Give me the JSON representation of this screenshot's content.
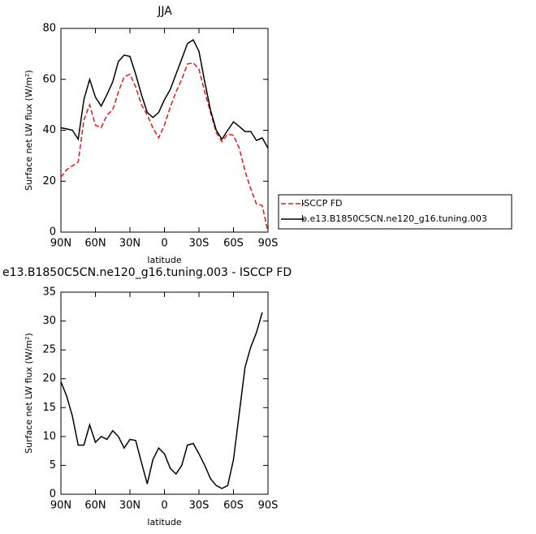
{
  "chart_data": [
    {
      "type": "line",
      "title": "JJA",
      "x_label": "latitude",
      "y_label": "Surface net LW flux (W/m²)",
      "x": [
        90,
        85,
        80,
        75,
        70,
        65,
        60,
        55,
        50,
        45,
        40,
        35,
        30,
        25,
        20,
        15,
        10,
        5,
        0,
        -5,
        -10,
        -15,
        -20,
        -25,
        -30,
        -35,
        -40,
        -45,
        -50,
        -55,
        -60,
        -65,
        -70,
        -75,
        -80,
        -85,
        -90
      ],
      "series": [
        {
          "name": "ISCCP FD",
          "color": "#e0191c",
          "line_style": "dashed",
          "values": [
            21.5,
            24.5,
            26,
            27.5,
            44,
            50,
            42,
            41,
            46,
            48,
            55,
            61,
            62,
            57,
            50,
            46,
            41,
            37,
            42,
            49,
            55,
            60,
            66,
            66.5,
            64,
            55,
            47,
            39,
            35.5,
            38.5,
            38,
            33,
            24,
            17,
            11,
            10.5,
            0
          ]
        },
        {
          "name": "b.e13.B1850C5CN.ne120_g16.tuning.003",
          "color": "#000000",
          "line_style": "solid",
          "values": [
            41,
            40.5,
            40,
            36.5,
            52,
            60,
            53,
            49.5,
            54,
            59,
            67,
            69.5,
            69,
            62,
            54,
            47,
            45,
            47,
            52,
            56,
            62,
            68,
            74,
            75.5,
            71,
            59,
            48,
            40,
            36.5,
            40,
            43.3,
            41.5,
            39.5,
            39.5,
            36,
            37,
            33
          ]
        }
      ],
      "xlim": [
        90,
        -90
      ],
      "xticks": [
        {
          "value": 90,
          "label": "90N"
        },
        {
          "value": 60,
          "label": "60N"
        },
        {
          "value": 30,
          "label": "30N"
        },
        0,
        {
          "value": -30,
          "label": "30S"
        },
        {
          "value": -60,
          "label": "60S"
        },
        {
          "value": -90,
          "label": "90S"
        }
      ],
      "ylim": [
        0,
        80
      ],
      "yticks": [
        0,
        20,
        40,
        60,
        80
      ],
      "legend": "right"
    },
    {
      "type": "line",
      "title": "e13.B1850C5CN.ne120_g16.tuning.003 - ISCCP FD",
      "x_label": "latitude",
      "y_label": "Surface net LW flux (W/m²)",
      "x": [
        90,
        85,
        80,
        75,
        70,
        65,
        60,
        55,
        50,
        45,
        40,
        35,
        30,
        25,
        20,
        15,
        10,
        5,
        0,
        -5,
        -10,
        -15,
        -20,
        -25,
        -30,
        -35,
        -40,
        -45,
        -50,
        -55,
        -60,
        -65,
        -70,
        -75,
        -80,
        -85
      ],
      "color": "#000000",
      "values": [
        19.5,
        17,
        13.5,
        8.5,
        8.5,
        12,
        9,
        10,
        9.5,
        11,
        10,
        8,
        9.5,
        9.3,
        5.5,
        1.8,
        6,
        8,
        7,
        4.5,
        3.5,
        5,
        8.5,
        8.8,
        7,
        5,
        2.7,
        1.5,
        1,
        1.5,
        6,
        14,
        22,
        25.5,
        28,
        31.5
      ],
      "xlim": [
        90,
        -90
      ],
      "xticks": [
        {
          "value": 90,
          "label": "90N"
        },
        {
          "value": 60,
          "label": "60N"
        },
        {
          "value": 30,
          "label": "30N"
        },
        0,
        {
          "value": -30,
          "label": "30S"
        },
        {
          "value": -60,
          "label": "60S"
        },
        {
          "value": -90,
          "label": "90S"
        }
      ],
      "ylim": [
        0,
        35
      ],
      "yticks": [
        0,
        5,
        10,
        15,
        20,
        25,
        30,
        35
      ]
    }
  ]
}
